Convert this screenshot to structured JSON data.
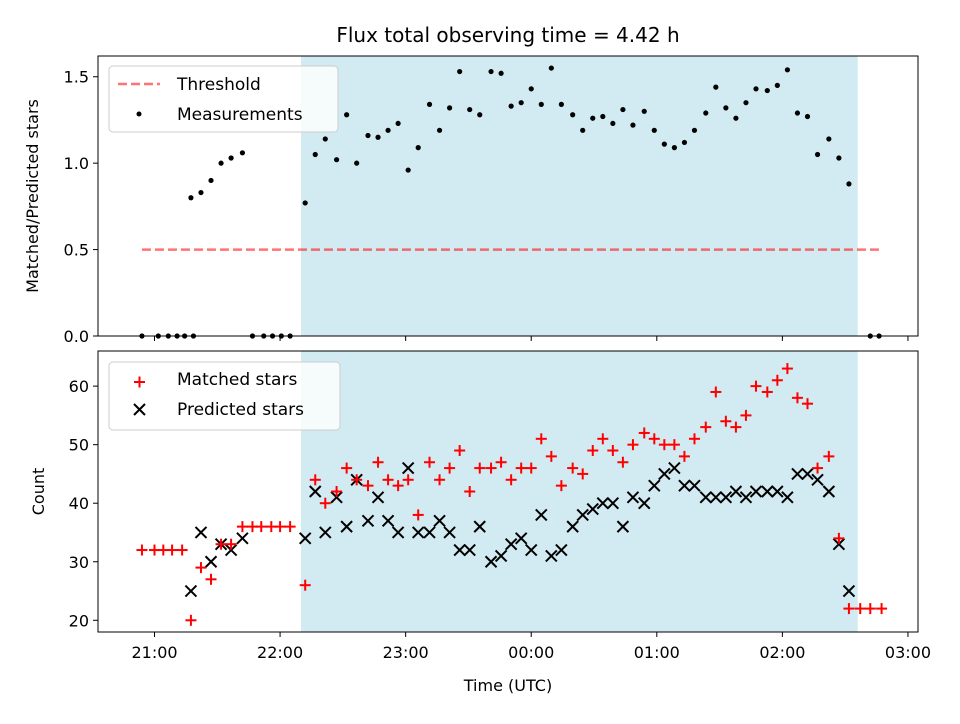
{
  "figure": {
    "title": "Flux total observing time = 4.42 h",
    "xlabel": "Time (UTC)",
    "shade_color": "#add8e6",
    "threshold_color": "#ff0000",
    "matched_color": "#ff0000",
    "predicted_color": "#000000"
  },
  "chart_data": [
    {
      "type": "scatter",
      "ylabel": "Matched/Predicted stars",
      "ylim": [
        0,
        1.62
      ],
      "yticks": [
        0.0,
        0.5,
        1.0,
        1.5
      ],
      "ytick_labels": [
        "0.0",
        "0.5",
        "1.0",
        "1.5"
      ],
      "x_axis": "time (hours since 00:00 UTC)",
      "xlim": [
        -3.45,
        3.08
      ],
      "grid": false,
      "legend_position": "upper-left",
      "shaded_region": [
        -1.833,
        2.6
      ],
      "threshold": {
        "name": "Threshold",
        "y": 0.5,
        "x_range": [
          -3.1,
          2.78
        ],
        "style": "dashed"
      },
      "series": [
        {
          "name": "Measurements",
          "marker": "dot",
          "points": [
            [
              -3.1,
              0.0
            ],
            [
              -2.97,
              0.0
            ],
            [
              -2.89,
              0.0
            ],
            [
              -2.82,
              0.0
            ],
            [
              -2.76,
              0.0
            ],
            [
              -2.69,
              0.0
            ],
            [
              -2.71,
              0.8
            ],
            [
              -2.63,
              0.83
            ],
            [
              -2.55,
              0.9
            ],
            [
              -2.47,
              1.0
            ],
            [
              -2.39,
              1.03
            ],
            [
              -2.3,
              1.06
            ],
            [
              -2.22,
              0.0
            ],
            [
              -2.13,
              0.0
            ],
            [
              -2.06,
              0.0
            ],
            [
              -1.99,
              0.0
            ],
            [
              -1.92,
              0.0
            ],
            [
              -1.8,
              0.77
            ],
            [
              -1.72,
              1.05
            ],
            [
              -1.64,
              1.14
            ],
            [
              -1.55,
              1.02
            ],
            [
              -1.47,
              1.28
            ],
            [
              -1.39,
              1.0
            ],
            [
              -1.3,
              1.16
            ],
            [
              -1.22,
              1.15
            ],
            [
              -1.14,
              1.19
            ],
            [
              -1.06,
              1.23
            ],
            [
              -0.98,
              0.96
            ],
            [
              -0.9,
              1.09
            ],
            [
              -0.81,
              1.34
            ],
            [
              -0.73,
              1.19
            ],
            [
              -0.65,
              1.32
            ],
            [
              -0.57,
              1.53
            ],
            [
              -0.49,
              1.31
            ],
            [
              -0.41,
              1.28
            ],
            [
              -0.32,
              1.53
            ],
            [
              -0.24,
              1.52
            ],
            [
              -0.16,
              1.33
            ],
            [
              -0.08,
              1.35
            ],
            [
              0.0,
              1.43
            ],
            [
              0.08,
              1.34
            ],
            [
              0.16,
              1.55
            ],
            [
              0.24,
              1.34
            ],
            [
              0.33,
              1.28
            ],
            [
              0.41,
              1.19
            ],
            [
              0.49,
              1.26
            ],
            [
              0.57,
              1.27
            ],
            [
              0.65,
              1.23
            ],
            [
              0.73,
              1.31
            ],
            [
              0.81,
              1.22
            ],
            [
              0.9,
              1.3
            ],
            [
              0.98,
              1.19
            ],
            [
              1.06,
              1.11
            ],
            [
              1.14,
              1.09
            ],
            [
              1.22,
              1.12
            ],
            [
              1.3,
              1.19
            ],
            [
              1.39,
              1.29
            ],
            [
              1.47,
              1.44
            ],
            [
              1.55,
              1.32
            ],
            [
              1.63,
              1.26
            ],
            [
              1.71,
              1.35
            ],
            [
              1.79,
              1.43
            ],
            [
              1.88,
              1.42
            ],
            [
              1.96,
              1.45
            ],
            [
              2.04,
              1.54
            ],
            [
              2.12,
              1.29
            ],
            [
              2.2,
              1.27
            ],
            [
              2.28,
              1.05
            ],
            [
              2.37,
              1.14
            ],
            [
              2.45,
              1.03
            ],
            [
              2.53,
              0.88
            ],
            [
              2.7,
              0.0
            ],
            [
              2.77,
              0.0
            ]
          ]
        }
      ]
    },
    {
      "type": "scatter",
      "ylabel": "Count",
      "ylim": [
        18,
        66
      ],
      "yticks": [
        20,
        30,
        40,
        50,
        60
      ],
      "ytick_labels": [
        "20",
        "30",
        "40",
        "50",
        "60"
      ],
      "x_axis": "time (hours since 00:00 UTC)",
      "xlim": [
        -3.45,
        3.08
      ],
      "xticks": [
        -3,
        -2,
        -1,
        0,
        1,
        2,
        3
      ],
      "xtick_labels": [
        "21:00",
        "22:00",
        "23:00",
        "00:00",
        "01:00",
        "02:00",
        "03:00"
      ],
      "grid": false,
      "legend_position": "upper-left",
      "shaded_region": [
        -1.833,
        2.6
      ],
      "series": [
        {
          "name": "Matched stars",
          "marker": "plus",
          "points": [
            [
              -3.1,
              32
            ],
            [
              -3.0,
              32
            ],
            [
              -2.93,
              32
            ],
            [
              -2.86,
              32
            ],
            [
              -2.78,
              32
            ],
            [
              -2.71,
              20
            ],
            [
              -2.63,
              29
            ],
            [
              -2.55,
              27
            ],
            [
              -2.47,
              33
            ],
            [
              -2.39,
              33
            ],
            [
              -2.3,
              36
            ],
            [
              -2.22,
              36
            ],
            [
              -2.15,
              36
            ],
            [
              -2.07,
              36
            ],
            [
              -2.0,
              36
            ],
            [
              -1.92,
              36
            ],
            [
              -1.8,
              26
            ],
            [
              -1.72,
              44
            ],
            [
              -1.64,
              40
            ],
            [
              -1.55,
              42
            ],
            [
              -1.47,
              46
            ],
            [
              -1.39,
              44
            ],
            [
              -1.3,
              43
            ],
            [
              -1.22,
              47
            ],
            [
              -1.14,
              44
            ],
            [
              -1.06,
              43
            ],
            [
              -0.98,
              44
            ],
            [
              -0.9,
              38
            ],
            [
              -0.81,
              47
            ],
            [
              -0.73,
              44
            ],
            [
              -0.65,
              46
            ],
            [
              -0.57,
              49
            ],
            [
              -0.49,
              42
            ],
            [
              -0.41,
              46
            ],
            [
              -0.32,
              46
            ],
            [
              -0.24,
              47
            ],
            [
              -0.16,
              44
            ],
            [
              -0.08,
              46
            ],
            [
              0.0,
              46
            ],
            [
              0.08,
              51
            ],
            [
              0.16,
              48
            ],
            [
              0.24,
              43
            ],
            [
              0.33,
              46
            ],
            [
              0.41,
              45
            ],
            [
              0.49,
              49
            ],
            [
              0.57,
              51
            ],
            [
              0.65,
              49
            ],
            [
              0.73,
              47
            ],
            [
              0.81,
              50
            ],
            [
              0.9,
              52
            ],
            [
              0.98,
              51
            ],
            [
              1.06,
              50
            ],
            [
              1.14,
              50
            ],
            [
              1.22,
              48
            ],
            [
              1.3,
              51
            ],
            [
              1.39,
              53
            ],
            [
              1.47,
              59
            ],
            [
              1.55,
              54
            ],
            [
              1.63,
              53
            ],
            [
              1.71,
              55
            ],
            [
              1.79,
              60
            ],
            [
              1.88,
              59
            ],
            [
              1.96,
              61
            ],
            [
              2.04,
              63
            ],
            [
              2.12,
              58
            ],
            [
              2.2,
              57
            ],
            [
              2.28,
              46
            ],
            [
              2.37,
              48
            ],
            [
              2.45,
              34
            ],
            [
              2.53,
              22
            ],
            [
              2.62,
              22
            ],
            [
              2.7,
              22
            ],
            [
              2.79,
              22
            ]
          ]
        },
        {
          "name": "Predicted stars",
          "marker": "x",
          "points": [
            [
              -2.71,
              25
            ],
            [
              -2.63,
              35
            ],
            [
              -2.55,
              30
            ],
            [
              -2.47,
              33
            ],
            [
              -2.39,
              32
            ],
            [
              -2.3,
              34
            ],
            [
              -1.8,
              34
            ],
            [
              -1.72,
              42
            ],
            [
              -1.64,
              35
            ],
            [
              -1.55,
              41
            ],
            [
              -1.47,
              36
            ],
            [
              -1.39,
              44
            ],
            [
              -1.3,
              37
            ],
            [
              -1.22,
              41
            ],
            [
              -1.14,
              37
            ],
            [
              -1.06,
              35
            ],
            [
              -0.98,
              46
            ],
            [
              -0.9,
              35
            ],
            [
              -0.81,
              35
            ],
            [
              -0.73,
              37
            ],
            [
              -0.65,
              35
            ],
            [
              -0.57,
              32
            ],
            [
              -0.49,
              32
            ],
            [
              -0.41,
              36
            ],
            [
              -0.32,
              30
            ],
            [
              -0.24,
              31
            ],
            [
              -0.16,
              33
            ],
            [
              -0.08,
              34
            ],
            [
              0.0,
              32
            ],
            [
              0.08,
              38
            ],
            [
              0.16,
              31
            ],
            [
              0.24,
              32
            ],
            [
              0.33,
              36
            ],
            [
              0.41,
              38
            ],
            [
              0.49,
              39
            ],
            [
              0.57,
              40
            ],
            [
              0.65,
              40
            ],
            [
              0.73,
              36
            ],
            [
              0.81,
              41
            ],
            [
              0.9,
              40
            ],
            [
              0.98,
              43
            ],
            [
              1.06,
              45
            ],
            [
              1.14,
              46
            ],
            [
              1.22,
              43
            ],
            [
              1.3,
              43
            ],
            [
              1.39,
              41
            ],
            [
              1.47,
              41
            ],
            [
              1.55,
              41
            ],
            [
              1.63,
              42
            ],
            [
              1.71,
              41
            ],
            [
              1.79,
              42
            ],
            [
              1.88,
              42
            ],
            [
              1.96,
              42
            ],
            [
              2.04,
              41
            ],
            [
              2.12,
              45
            ],
            [
              2.2,
              45
            ],
            [
              2.28,
              44
            ],
            [
              2.37,
              42
            ],
            [
              2.45,
              33
            ],
            [
              2.53,
              25
            ]
          ]
        }
      ]
    }
  ]
}
